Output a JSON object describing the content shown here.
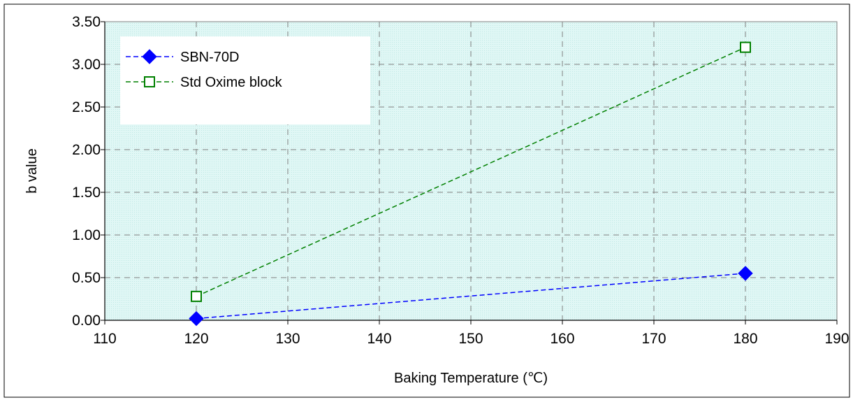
{
  "chart_data": {
    "type": "line",
    "x": [
      120,
      180
    ],
    "series": [
      {
        "name": "SBN-70D",
        "x": [
          120,
          180
        ],
        "values": [
          0.02,
          0.55
        ],
        "color": "#0000ff",
        "marker": "filled-diamond"
      },
      {
        "name": "Std Oxime block",
        "x": [
          120,
          180
        ],
        "values": [
          0.28,
          3.2
        ],
        "color": "#008000",
        "marker": "open-square"
      }
    ],
    "title": "",
    "xlabel": "Baking Temperature (℃)",
    "ylabel": "b value",
    "xlim": [
      110,
      190
    ],
    "ylim": [
      0,
      3.5
    ],
    "xticks": [
      "110",
      "120",
      "130",
      "140",
      "150",
      "160",
      "170",
      "180",
      "190"
    ],
    "yticks": [
      "0.00",
      "0.50",
      "1.00",
      "1.50",
      "2.00",
      "2.50",
      "3.00",
      "3.50"
    ],
    "grid": true,
    "legend_position": "top-left",
    "plot_background": "#e0f7f5"
  }
}
